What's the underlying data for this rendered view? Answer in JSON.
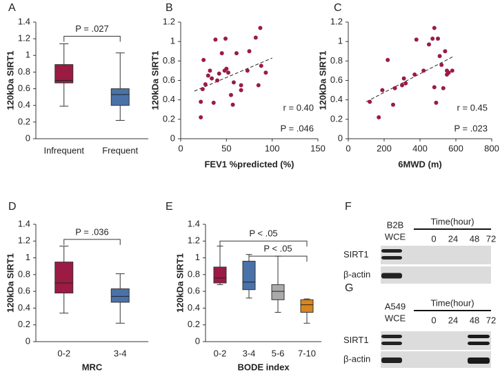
{
  "chart_data": [
    {
      "type": "box",
      "panel": "A",
      "ylabel": "120kDa SIRT1",
      "categories": [
        "Infrequent",
        "Frequent"
      ],
      "colors": [
        "#9b1b45",
        "#4a72a8"
      ],
      "low": [
        0.39,
        0.22
      ],
      "q1": [
        0.67,
        0.4
      ],
      "median": [
        0.7,
        0.53
      ],
      "q3": [
        0.89,
        0.6
      ],
      "high": [
        1.14,
        1.03
      ],
      "ylim": [
        0,
        1.4
      ],
      "yticks": [
        0,
        0.2,
        0.4,
        0.6,
        0.8,
        1,
        1.2,
        1.4
      ],
      "annotations": [
        "P = .027"
      ]
    },
    {
      "type": "scatter",
      "panel": "B",
      "ylabel": "120kDa SIRT1",
      "xlabel": "FEV1 %predicted (%)",
      "color": "#9b1b45",
      "x": [
        22,
        22,
        24,
        25,
        27,
        30,
        32,
        34,
        36,
        38,
        40,
        42,
        45,
        48,
        49,
        50,
        52,
        55,
        57,
        58,
        61,
        66,
        66,
        73,
        75,
        82,
        85,
        87,
        88,
        93
      ],
      "y": [
        0.22,
        0.38,
        0.51,
        0.81,
        0.56,
        0.65,
        0.7,
        0.62,
        0.37,
        1.02,
        0.6,
        0.67,
        0.88,
        0.7,
        1.03,
        0.72,
        0.68,
        0.45,
        0.35,
        0.58,
        0.88,
        0.55,
        0.5,
        0.7,
        0.9,
        1.04,
        0.55,
        1.14,
        0.75,
        0.68
      ],
      "trend": {
        "x": [
          15,
          100
        ],
        "y": [
          0.49,
          0.83
        ]
      },
      "xlim": [
        0,
        150
      ],
      "xticks": [
        0,
        50,
        100,
        150
      ],
      "ylim": [
        0,
        1.2
      ],
      "yticks": [
        0,
        0.2,
        0.4,
        0.6,
        0.8,
        1,
        1.2
      ],
      "annotations": [
        "r = 0.40",
        "P = .046"
      ]
    },
    {
      "type": "scatter",
      "panel": "C",
      "ylabel": "120kDa SIRT1",
      "xlabel": "6MWD (m)",
      "color": "#9b1b45",
      "x": [
        120,
        170,
        190,
        220,
        250,
        260,
        300,
        310,
        320,
        370,
        380,
        420,
        450,
        470,
        480,
        480,
        490,
        500,
        510,
        520,
        530,
        540,
        550,
        550,
        560,
        580
      ],
      "y": [
        0.38,
        0.22,
        0.5,
        0.81,
        0.35,
        0.52,
        0.55,
        0.62,
        0.57,
        0.66,
        1.02,
        0.7,
        0.97,
        1.03,
        1.14,
        0.53,
        0.37,
        1.03,
        0.85,
        0.76,
        0.52,
        0.9,
        0.7,
        0.66,
        0.68,
        0.7
      ],
      "trend": {
        "x": [
          100,
          590
        ],
        "y": [
          0.38,
          0.85
        ]
      },
      "xlim": [
        0,
        800
      ],
      "xticks": [
        0,
        200,
        400,
        600,
        800
      ],
      "ylim": [
        0,
        1.2
      ],
      "yticks": [
        0,
        0.2,
        0.4,
        0.6,
        0.8,
        1,
        1.2
      ],
      "annotations": [
        "r = 0.45",
        "P = .023"
      ]
    },
    {
      "type": "box",
      "panel": "D",
      "ylabel": "120kDa SIRT1",
      "xlabel": "MRC",
      "categories": [
        "0-2",
        "3-4"
      ],
      "colors": [
        "#9b1b45",
        "#4a72a8"
      ],
      "low": [
        0.34,
        0.22
      ],
      "q1": [
        0.58,
        0.47
      ],
      "median": [
        0.7,
        0.54
      ],
      "q3": [
        0.95,
        0.63
      ],
      "high": [
        1.14,
        0.81
      ],
      "ylim": [
        0,
        1.4
      ],
      "yticks": [
        0,
        0.2,
        0.4,
        0.6,
        0.8,
        1,
        1.2,
        1.4
      ],
      "annotations": [
        "P = .036"
      ]
    },
    {
      "type": "box",
      "panel": "E",
      "ylabel": "120kDa SIRT1",
      "xlabel": "BODE index",
      "categories": [
        "0-2",
        "3-4",
        "5-6",
        "7-10"
      ],
      "colors": [
        "#9b1b45",
        "#4a72a8",
        "#aaaaaa",
        "#d9861e"
      ],
      "low": [
        0.68,
        0.52,
        0.35,
        0.22
      ],
      "q1": [
        0.7,
        0.62,
        0.5,
        0.35
      ],
      "median": [
        0.76,
        0.71,
        0.6,
        0.44
      ],
      "q3": [
        0.89,
        0.96,
        0.68,
        0.5
      ],
      "high": [
        1.14,
        1.04,
        1.02,
        0.51
      ],
      "ylim": [
        0,
        1.4
      ],
      "yticks": [
        0,
        0.2,
        0.4,
        0.6,
        0.8,
        1,
        1.2,
        1.4
      ],
      "annotations": [
        "P < .05",
        "P < .05"
      ]
    }
  ],
  "blots": [
    {
      "panel": "F",
      "cell_line": "B2B",
      "extract": "WCE",
      "time_label": "Time(hour)",
      "lanes": [
        "0",
        "24",
        "48",
        "72"
      ],
      "rows": [
        "SIRT1",
        "β-actin"
      ]
    },
    {
      "panel": "G",
      "cell_line": "A549",
      "extract": "WCE",
      "time_label": "Time(hour)",
      "lanes": [
        "0",
        "24",
        "48",
        "72"
      ],
      "rows": [
        "SIRT1",
        "β-actin"
      ]
    }
  ]
}
